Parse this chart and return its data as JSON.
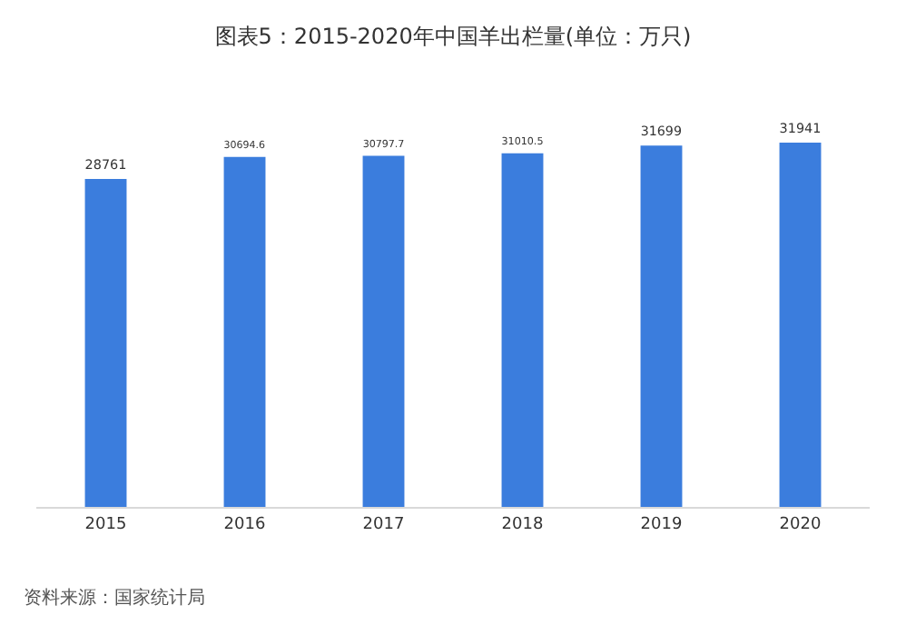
{
  "chart_data": {
    "type": "bar",
    "title": "图表5：2015-2020年中国羊出栏量(单位：万只)",
    "categories": [
      "2015",
      "2016",
      "2017",
      "2018",
      "2019",
      "2020"
    ],
    "values": [
      28761,
      30694.6,
      30797.7,
      31010.5,
      31699,
      31941
    ],
    "color": "#3b7ddd",
    "data_labels": true,
    "tick_labels": "x",
    "grid": false,
    "annotations": [
      "资料来源：国家统计局"
    ]
  }
}
